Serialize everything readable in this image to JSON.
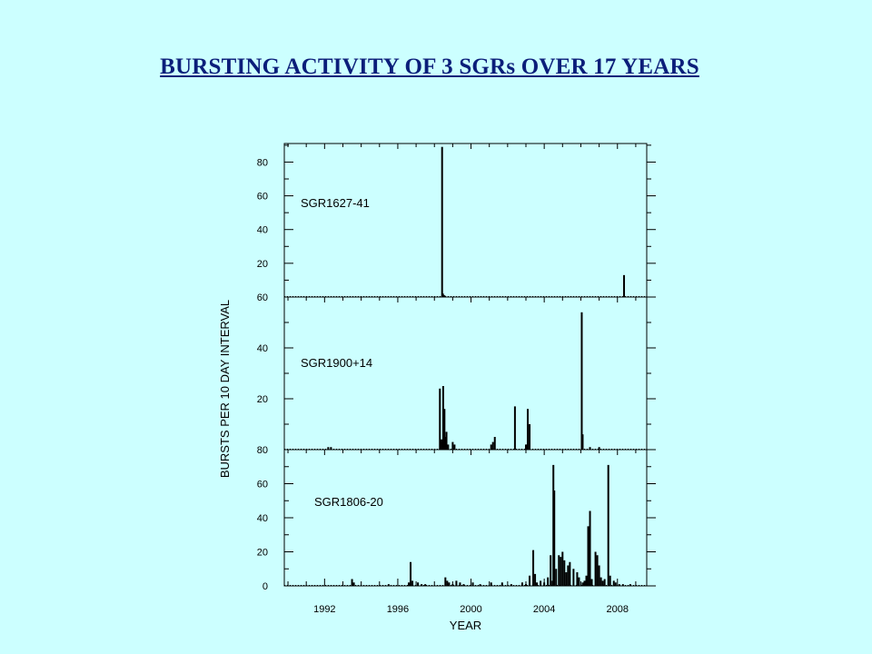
{
  "title": "BURSTING ACTIVITY  OF 3 SGRs OVER 17 YEARS",
  "chart_data": {
    "type": "bar",
    "title": "BURSTING ACTIVITY  OF 3 SGRs OVER 17 YEARS",
    "xlabel": "YEAR",
    "ylabel": "BURSTS PER 10 DAY INTERVAL",
    "xlim": [
      1989.8,
      2009.6
    ],
    "x_ticks": [
      1992,
      1996,
      2000,
      2004,
      2008
    ],
    "grid": false,
    "bar_color": "#000000",
    "panels": [
      {
        "name": "SGR1627-41",
        "ylim": [
          0,
          91
        ],
        "y_ticks": [
          20,
          40,
          60,
          80
        ],
        "series": [
          {
            "x": [
              1998.42,
              1998.47,
              1998.5,
              1998.55,
              2008.36
            ],
            "values": [
              89,
              2,
              1,
              1,
              13
            ]
          }
        ]
      },
      {
        "name": "SGR1900+14",
        "ylim": [
          0,
          60
        ],
        "y_ticks": [
          20,
          40,
          60
        ],
        "series": [
          {
            "x": [
              1992.2,
              1992.35,
              1998.3,
              1998.36,
              1998.42,
              1998.48,
              1998.55,
              1998.6,
              1998.66,
              1998.75,
              1999.0,
              1999.1,
              2001.1,
              2001.2,
              2001.3,
              2002.4,
              2003.0,
              2003.05,
              2003.1,
              2003.2,
              2006.05,
              2006.1,
              2006.5,
              2007.0
            ],
            "values": [
              1,
              1,
              24,
              4,
              4,
              25,
              16,
              5,
              7,
              2,
              3,
              2,
              2,
              3,
              5,
              17,
              2,
              2,
              16,
              10,
              54,
              6,
              1,
              1
            ]
          }
        ]
      },
      {
        "name": "SGR1806-20",
        "ylim": [
          0,
          80
        ],
        "y_ticks": [
          0,
          20,
          40,
          60,
          80
        ],
        "series": [
          {
            "x": [
              1993.5,
              1993.6,
              1995.5,
              1996.6,
              1996.7,
              1996.8,
              1997.1,
              1997.3,
              1997.5,
              1998.6,
              1998.7,
              1998.8,
              1999.0,
              1999.2,
              1999.4,
              1999.6,
              2000.1,
              2000.5,
              2001.1,
              2001.7,
              2002.2,
              2002.8,
              2003.0,
              2003.2,
              2003.4,
              2003.5,
              2003.6,
              2003.8,
              2004.0,
              2004.2,
              2004.35,
              2004.45,
              2004.5,
              2004.55,
              2004.65,
              2004.8,
              2004.9,
              2005.0,
              2005.1,
              2005.2,
              2005.3,
              2005.4,
              2005.6,
              2005.8,
              2005.9,
              2006.1,
              2006.2,
              2006.3,
              2006.4,
              2006.5,
              2006.6,
              2006.8,
              2006.9,
              2007.0,
              2007.1,
              2007.2,
              2007.3,
              2007.5,
              2007.6,
              2007.8,
              2007.9,
              2008.1,
              2008.3,
              2008.7
            ],
            "values": [
              4,
              2,
              1,
              2,
              14,
              3,
              2,
              1,
              1,
              5,
              3,
              2,
              1,
              3,
              2,
              1,
              2,
              1,
              2,
              2,
              1,
              2,
              1,
              6,
              21,
              7,
              2,
              3,
              2,
              5,
              18,
              3,
              71,
              56,
              10,
              18,
              17,
              20,
              15,
              8,
              12,
              14,
              10,
              8,
              5,
              2,
              3,
              6,
              35,
              44,
              4,
              20,
              18,
              12,
              5,
              3,
              4,
              71,
              6,
              3,
              2,
              1,
              1,
              1
            ]
          }
        ]
      }
    ]
  }
}
